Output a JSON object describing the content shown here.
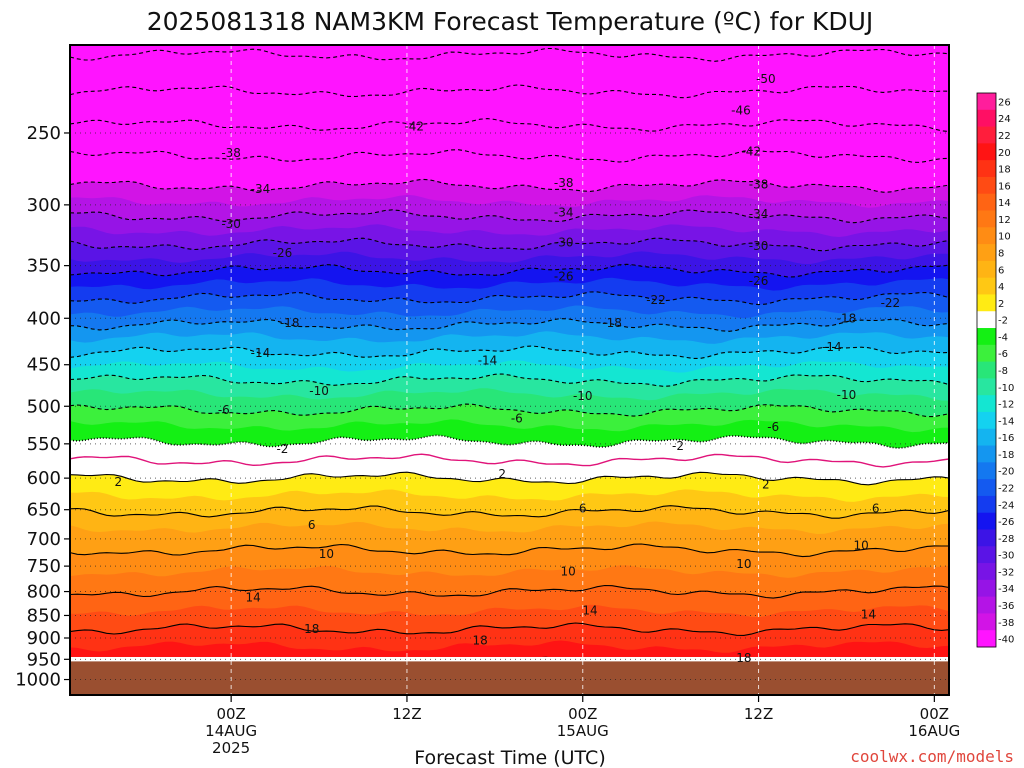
{
  "chart_data": {
    "type": "heatmap",
    "title": "2025081318 NAM3KM Forecast Temperature (ºC) for KDUJ",
    "xlabel": "Forecast Time (UTC)",
    "ylabel": "",
    "credit": "coolwx.com/models",
    "yscale": "log-pressure",
    "ylim": [
      1040,
      200
    ],
    "y_ticks": [
      250,
      300,
      350,
      400,
      450,
      500,
      550,
      600,
      650,
      700,
      750,
      800,
      850,
      900,
      950,
      1000
    ],
    "y_tick_labels": [
      "250",
      "300",
      "350",
      "400",
      "450",
      "500",
      "550",
      "600",
      "650",
      "700",
      "750",
      "800",
      "850",
      "900",
      "950",
      "1000"
    ],
    "xlim": [
      -5,
      55
    ],
    "x_ticks": [
      {
        "hour": 6,
        "label": "00Z",
        "date": "14AUG",
        "year": "2025"
      },
      {
        "hour": 18,
        "label": "12Z",
        "date": "",
        "year": ""
      },
      {
        "hour": 30,
        "label": "00Z",
        "date": "15AUG",
        "year": ""
      },
      {
        "hour": 42,
        "label": "12Z",
        "date": "",
        "year": ""
      },
      {
        "hour": 54,
        "label": "00Z",
        "date": "16AUG",
        "year": ""
      }
    ],
    "grid": true,
    "surface_pressure": 955,
    "surface_color": "#9a4f30",
    "colorbar": {
      "ticks": [
        26,
        24,
        22,
        20,
        18,
        16,
        14,
        12,
        10,
        8,
        6,
        4,
        2,
        -2,
        -4,
        -6,
        -8,
        -10,
        -12,
        -14,
        -16,
        -18,
        -20,
        -22,
        -24,
        -26,
        -28,
        -30,
        -32,
        -34,
        -36,
        -38,
        -40
      ],
      "colors": [
        "#ff1e9c",
        "#ff0f64",
        "#ff1e3c",
        "#ff1414",
        "#ff3214",
        "#ff4b14",
        "#ff6414",
        "#ff7814",
        "#ff8c14",
        "#ffa014",
        "#ffb414",
        "#ffc814",
        "#ffeb14",
        "#ffffff",
        "#14f014",
        "#3cf03c",
        "#28e678",
        "#28e6a0",
        "#14e6d2",
        "#14d2f0",
        "#14b4f0",
        "#1496f0",
        "#1478f0",
        "#145af0",
        "#143cf0",
        "#1414f0",
        "#3c14e6",
        "#5a14e6",
        "#7814e6",
        "#9614e6",
        "#b414e6",
        "#d214e6",
        "#ff14ff"
      ]
    },
    "temperature_profile": {
      "pressure": [
        200,
        220,
        240,
        260,
        280,
        300,
        320,
        340,
        360,
        380,
        400,
        420,
        440,
        460,
        480,
        500,
        520,
        540,
        560,
        580,
        600,
        620,
        640,
        660,
        680,
        700,
        720,
        740,
        760,
        780,
        800,
        820,
        840,
        860,
        880,
        900,
        920,
        940,
        960
      ],
      "temperature_c": [
        -55,
        -51,
        -47,
        -43,
        -39,
        -35.5,
        -32,
        -28.5,
        -25,
        -22,
        -19,
        -16,
        -13.5,
        -11,
        -8.5,
        -6.5,
        -4.5,
        -2.5,
        -1,
        0.5,
        2,
        3.5,
        5,
        6.5,
        8,
        9,
        10,
        11,
        12,
        13,
        14,
        15,
        16,
        17,
        18,
        19,
        20,
        21,
        22
      ]
    },
    "contour_labels": [
      {
        "value": "-50",
        "hour": 42.5,
        "p": 218
      },
      {
        "value": "-46",
        "hour": 40.8,
        "p": 236
      },
      {
        "value": "-42",
        "hour": 18.5,
        "p": 246
      },
      {
        "value": "-42",
        "hour": 41.5,
        "p": 262
      },
      {
        "value": "-38",
        "hour": 6,
        "p": 263
      },
      {
        "value": "-38",
        "hour": 28.7,
        "p": 284
      },
      {
        "value": "-38",
        "hour": 42,
        "p": 285
      },
      {
        "value": "-34",
        "hour": 8,
        "p": 288
      },
      {
        "value": "-34",
        "hour": 28.7,
        "p": 306
      },
      {
        "value": "-34",
        "hour": 42,
        "p": 307
      },
      {
        "value": "-30",
        "hour": 6,
        "p": 315
      },
      {
        "value": "-30",
        "hour": 28.7,
        "p": 330
      },
      {
        "value": "-30",
        "hour": 42,
        "p": 333
      },
      {
        "value": "-26",
        "hour": 9.5,
        "p": 339
      },
      {
        "value": "-26",
        "hour": 28.7,
        "p": 360
      },
      {
        "value": "-26",
        "hour": 42,
        "p": 364
      },
      {
        "value": "-22",
        "hour": 35,
        "p": 382
      },
      {
        "value": "-22",
        "hour": 51,
        "p": 385
      },
      {
        "value": "-18",
        "hour": 10,
        "p": 405
      },
      {
        "value": "-18",
        "hour": 32,
        "p": 405
      },
      {
        "value": "-18",
        "hour": 48,
        "p": 400
      },
      {
        "value": "-14",
        "hour": 8,
        "p": 437
      },
      {
        "value": "-14",
        "hour": 23.5,
        "p": 445
      },
      {
        "value": "-14",
        "hour": 47,
        "p": 430
      },
      {
        "value": "-10",
        "hour": 12,
        "p": 481
      },
      {
        "value": "-10",
        "hour": 30,
        "p": 487
      },
      {
        "value": "-10",
        "hour": 48,
        "p": 486
      },
      {
        "value": "-6",
        "hour": 5.5,
        "p": 505
      },
      {
        "value": "-6",
        "hour": 25.5,
        "p": 516
      },
      {
        "value": "-6",
        "hour": 43,
        "p": 527
      },
      {
        "value": "-2",
        "hour": 9.5,
        "p": 557
      },
      {
        "value": "-2",
        "hour": 36.5,
        "p": 553
      },
      {
        "value": "2",
        "hour": -1.7,
        "p": 606
      },
      {
        "value": "2",
        "hour": 24.5,
        "p": 594
      },
      {
        "value": "2",
        "hour": 42.5,
        "p": 610
      },
      {
        "value": "6",
        "hour": 11.5,
        "p": 676
      },
      {
        "value": "6",
        "hour": 30,
        "p": 648
      },
      {
        "value": "6",
        "hour": 50,
        "p": 648
      },
      {
        "value": "10",
        "hour": 12.5,
        "p": 727
      },
      {
        "value": "10",
        "hour": 29,
        "p": 760
      },
      {
        "value": "10",
        "hour": 41,
        "p": 746
      },
      {
        "value": "10",
        "hour": 49,
        "p": 712
      },
      {
        "value": "14",
        "hour": 7.5,
        "p": 812
      },
      {
        "value": "14",
        "hour": 30.5,
        "p": 839
      },
      {
        "value": "14",
        "hour": 49.5,
        "p": 848
      },
      {
        "value": "18",
        "hour": 11.5,
        "p": 880
      },
      {
        "value": "18",
        "hour": 23,
        "p": 906
      },
      {
        "value": "18",
        "hour": 41,
        "p": 947
      }
    ]
  }
}
